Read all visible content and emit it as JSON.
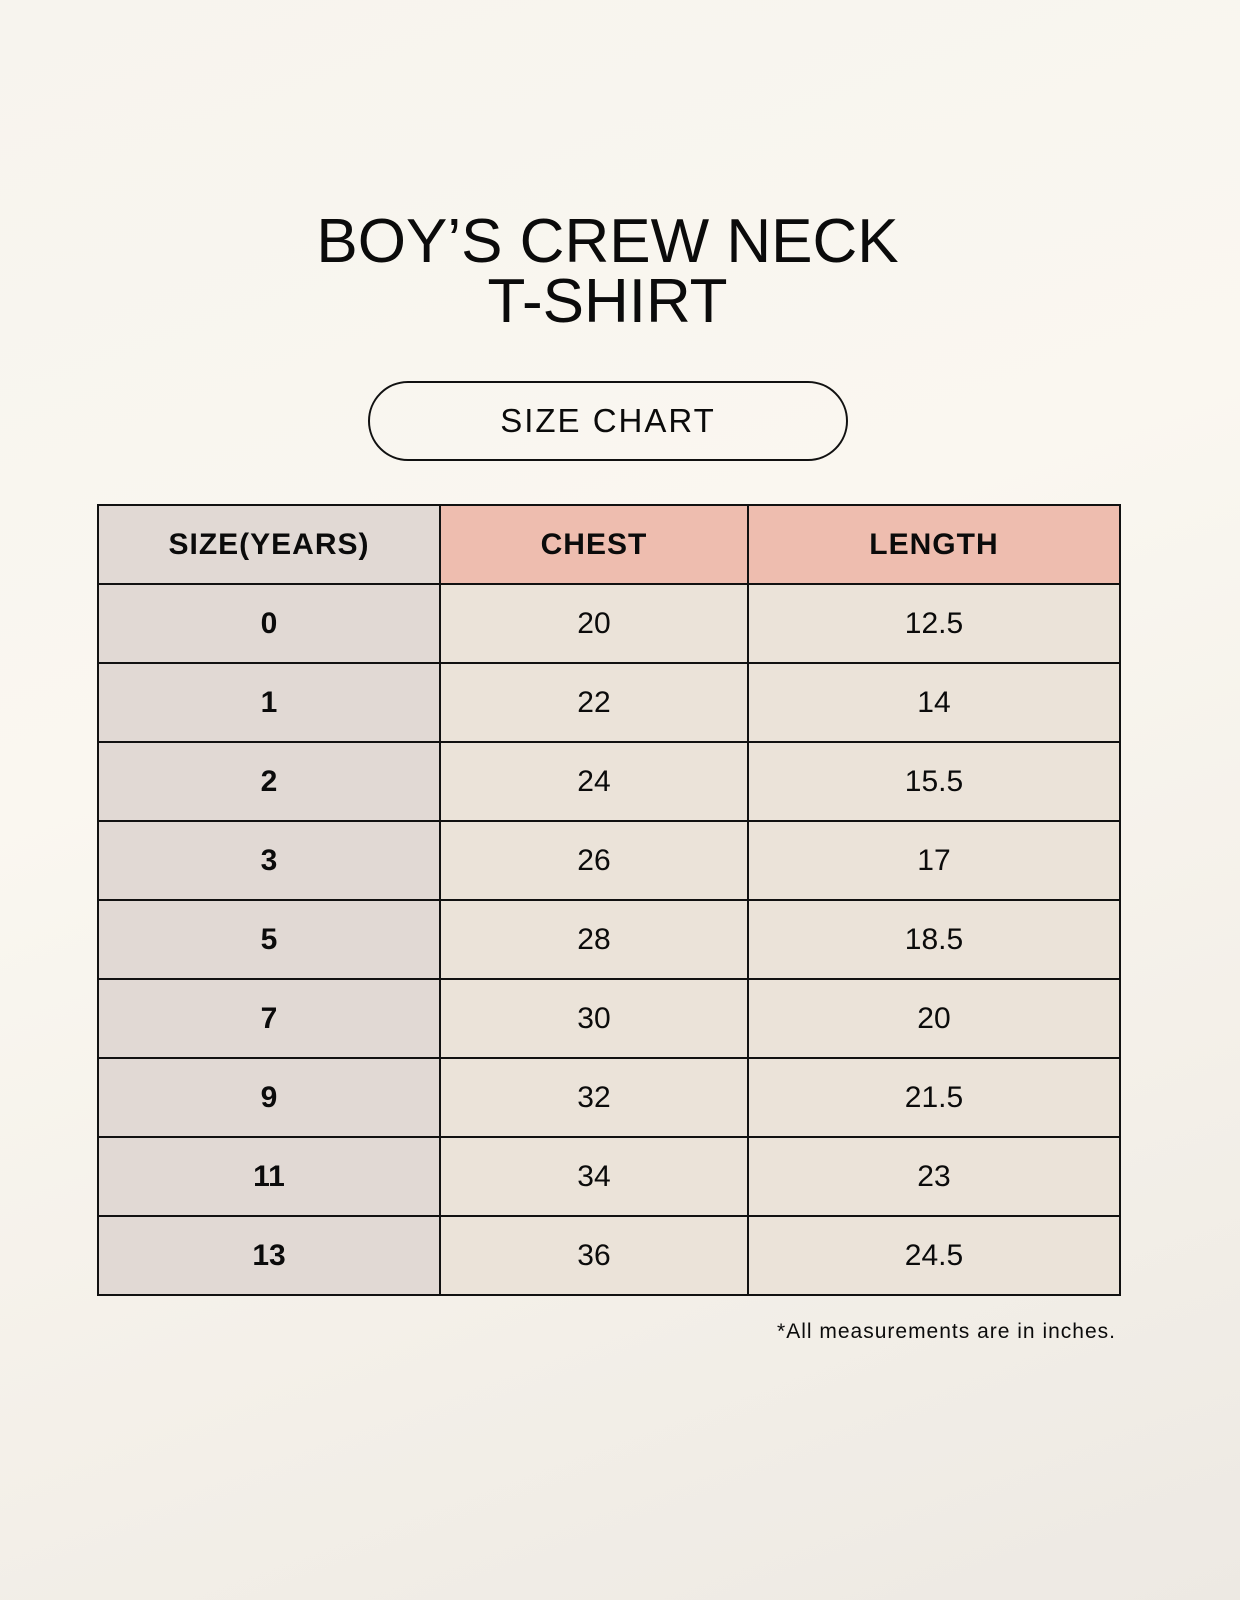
{
  "title_line1": "BOY’S CREW NECK",
  "title_line2": "T-SHIRT",
  "subtitle": "SIZE CHART",
  "table": {
    "headers": [
      "SIZE(YEARS)",
      "CHEST",
      "LENGTH"
    ],
    "rows": [
      [
        "0",
        "20",
        "12.5"
      ],
      [
        "1",
        "22",
        "14"
      ],
      [
        "2",
        "24",
        "15.5"
      ],
      [
        "3",
        "26",
        "17"
      ],
      [
        "5",
        "28",
        "18.5"
      ],
      [
        "7",
        "30",
        "20"
      ],
      [
        "9",
        "32",
        "21.5"
      ],
      [
        "11",
        "34",
        "23"
      ],
      [
        "13",
        "36",
        "24.5"
      ]
    ]
  },
  "note": "*All measurements are in inches.",
  "colors": {
    "size_column": "#e1d9d4",
    "header_accent": "#eebdaf",
    "cell": "#ebe3d9"
  }
}
